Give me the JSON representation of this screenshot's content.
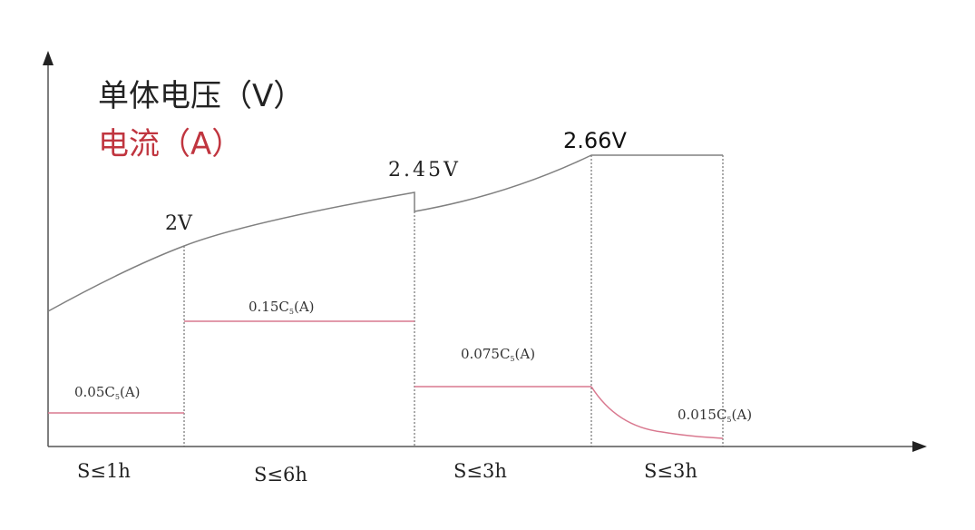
{
  "title": {
    "voltage_label": "单体电压（V）",
    "current_label": "电流（A）"
  },
  "colors": {
    "voltage_line": "#808080",
    "current_line": "#d9788f",
    "current_label": "#c0353f",
    "axis": "#555555"
  },
  "voltage_labels": [
    "2V",
    "2.45V",
    "2.66V"
  ],
  "current_labels": [
    "0.05C",
    "0.15C",
    "0.075C",
    "0.015C"
  ],
  "current_subscript": "5",
  "current_unit": "(A)",
  "stage_durations": [
    "S≤1h",
    "S≤6h",
    "S≤3h",
    "S≤3h"
  ]
}
